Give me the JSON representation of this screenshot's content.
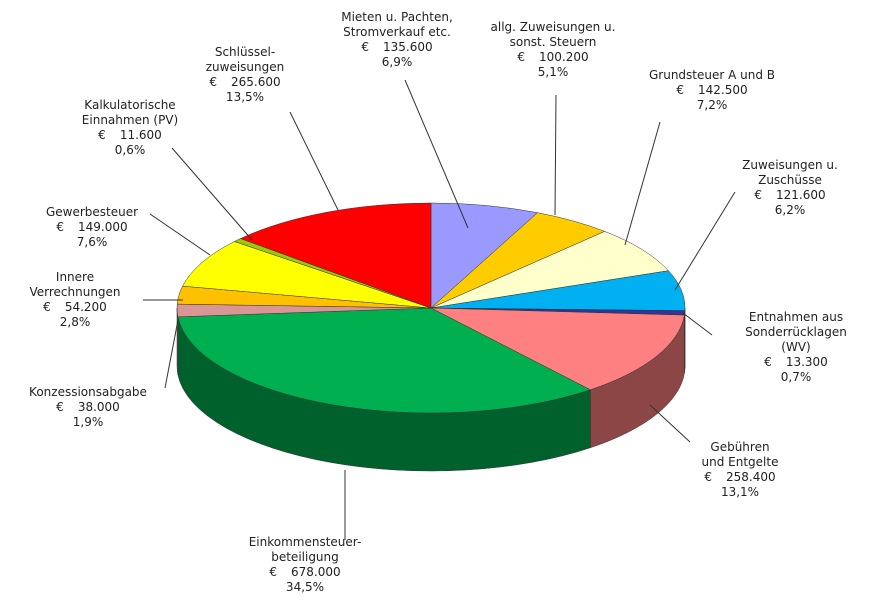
{
  "chart_data": {
    "type": "pie3d",
    "currency": "€",
    "categories": [
      "Mieten u. Pachten,\nStromverkauf etc.",
      "allg. Zuweisungen u.\nsonst. Steuern",
      "Grundsteuer A und B",
      "Zuweisungen u.\nZuschüsse",
      "Entnahmen aus\nSonderrücklagen (WV)",
      "Gebühren\nund Entgelte",
      "Einkommensteuer-\nbeteiligung",
      "Konzessionsabgabe",
      "Innere\nVerrechnungen",
      "Gewerbesteuer",
      "Kalkulatorische\nEinnahmen (PV)",
      "Schlüssel-\nzuweisungen"
    ],
    "values": [
      135600,
      100200,
      142500,
      121600,
      13300,
      258400,
      678000,
      38000,
      54200,
      149000,
      11600,
      265600
    ],
    "value_labels": [
      "135.600",
      "100.200",
      "142.500",
      "121.600",
      "13.300",
      "258.400",
      "678.000",
      "38.000",
      "54.200",
      "149.000",
      "11.600",
      "265.600"
    ],
    "percents": [
      6.9,
      5.1,
      7.2,
      6.2,
      0.7,
      13.1,
      34.5,
      1.9,
      2.8,
      7.6,
      0.6,
      13.5
    ],
    "percent_labels": [
      "6,9%",
      "5,1%",
      "7,2%",
      "6,2%",
      "0,7%",
      "13,1%",
      "34,5%",
      "1,9%",
      "2,8%",
      "7,6%",
      "0,6%",
      "13,5%"
    ],
    "colors": [
      "#9999ff",
      "#ffcc00",
      "#ffffcc",
      "#00b0f0",
      "#333399",
      "#ff8080",
      "#00b050",
      "#d99694",
      "#ffc000",
      "#ffff00",
      "#99cc00",
      "#ff0000"
    ]
  }
}
